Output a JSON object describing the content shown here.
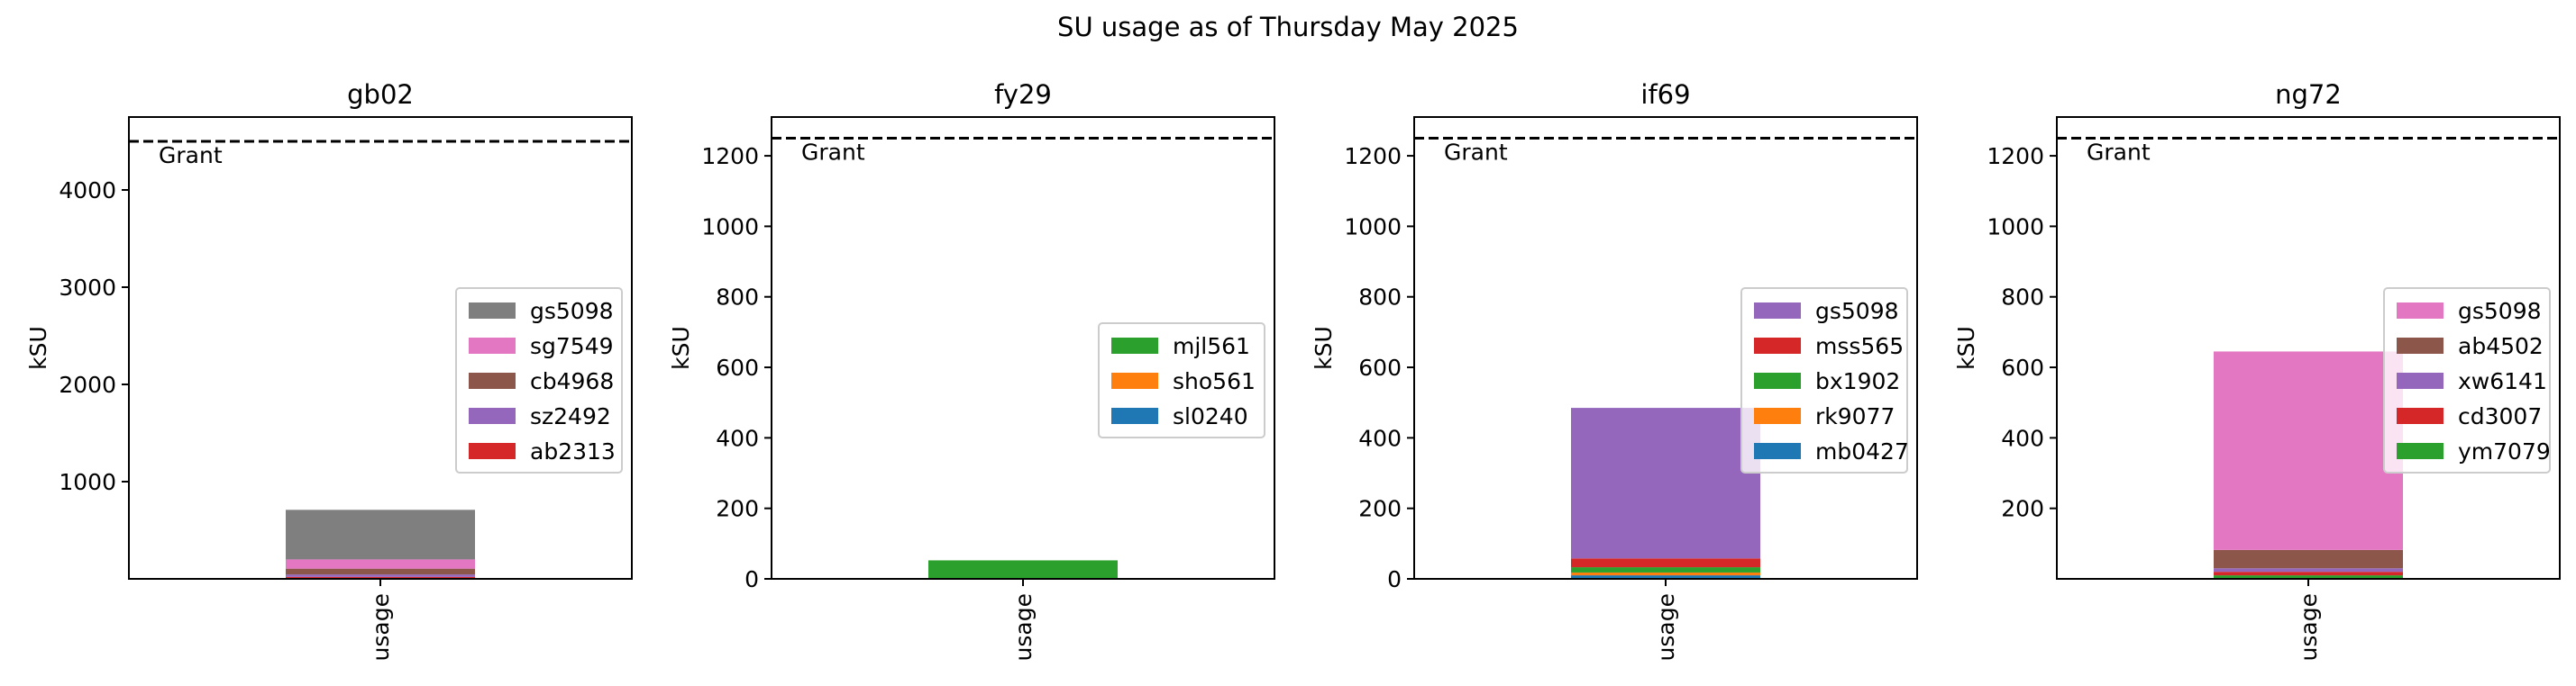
{
  "chart_data": {
    "title": "SU usage as of Thursday May 2025",
    "panels": [
      {
        "type": "bar",
        "stacked": true,
        "title": "gb02",
        "ylabel": "kSU",
        "categories": [
          "usage"
        ],
        "ylim": [
          0,
          4750
        ],
        "yticks": [
          1000,
          2000,
          3000,
          4000
        ],
        "grant": {
          "label": "Grant",
          "value": 4500
        },
        "legend_position": "center-right",
        "series": [
          {
            "name": "ab2313",
            "values": [
              20
            ],
            "color": "#d62728"
          },
          {
            "name": "sz2492",
            "values": [
              25
            ],
            "color": "#9467bd"
          },
          {
            "name": "cb4968",
            "values": [
              60
            ],
            "color": "#8c564b"
          },
          {
            "name": "sg7549",
            "values": [
              95
            ],
            "color": "#e377c2"
          },
          {
            "name": "gs5098",
            "values": [
              510
            ],
            "color": "#7f7f7f"
          }
        ]
      },
      {
        "type": "bar",
        "stacked": true,
        "title": "fy29",
        "ylabel": "kSU",
        "categories": [
          "usage"
        ],
        "ylim": [
          0,
          1310
        ],
        "yticks": [
          0,
          200,
          400,
          600,
          800,
          1000,
          1200
        ],
        "grant": {
          "label": "Grant",
          "value": 1250
        },
        "legend_position": "center-right",
        "series": [
          {
            "name": "sl0240",
            "values": [
              0.5
            ],
            "color": "#1f77b4"
          },
          {
            "name": "sho561",
            "values": [
              1
            ],
            "color": "#ff7f0e"
          },
          {
            "name": "mjl561",
            "values": [
              51
            ],
            "color": "#2ca02c"
          }
        ]
      },
      {
        "type": "bar",
        "stacked": true,
        "title": "if69",
        "ylabel": "kSU",
        "categories": [
          "usage"
        ],
        "ylim": [
          0,
          1310
        ],
        "yticks": [
          0,
          200,
          400,
          600,
          800,
          1000,
          1200
        ],
        "grant": {
          "label": "Grant",
          "value": 1250
        },
        "legend_position": "center-right",
        "series": [
          {
            "name": "mb0427",
            "values": [
              10
            ],
            "color": "#1f77b4"
          },
          {
            "name": "rk9077",
            "values": [
              8
            ],
            "color": "#ff7f0e"
          },
          {
            "name": "bx1902",
            "values": [
              15
            ],
            "color": "#2ca02c"
          },
          {
            "name": "mss565",
            "values": [
              25
            ],
            "color": "#d62728"
          },
          {
            "name": "gs5098",
            "values": [
              427
            ],
            "color": "#9467bd"
          }
        ]
      },
      {
        "type": "bar",
        "stacked": true,
        "title": "ng72",
        "ylabel": "kSU",
        "categories": [
          "usage"
        ],
        "ylim": [
          0,
          1310
        ],
        "yticks": [
          200,
          400,
          600,
          800,
          1000,
          1200
        ],
        "grant": {
          "label": "Grant",
          "value": 1250
        },
        "legend_position": "center-right",
        "series": [
          {
            "name": "ym7079",
            "values": [
              10
            ],
            "color": "#2ca02c"
          },
          {
            "name": "cd3007",
            "values": [
              10
            ],
            "color": "#d62728"
          },
          {
            "name": "xw6141",
            "values": [
              10
            ],
            "color": "#9467bd"
          },
          {
            "name": "ab4502",
            "values": [
              52
            ],
            "color": "#8c564b"
          },
          {
            "name": "gs5098",
            "values": [
              563
            ],
            "color": "#e377c2"
          }
        ]
      }
    ]
  }
}
